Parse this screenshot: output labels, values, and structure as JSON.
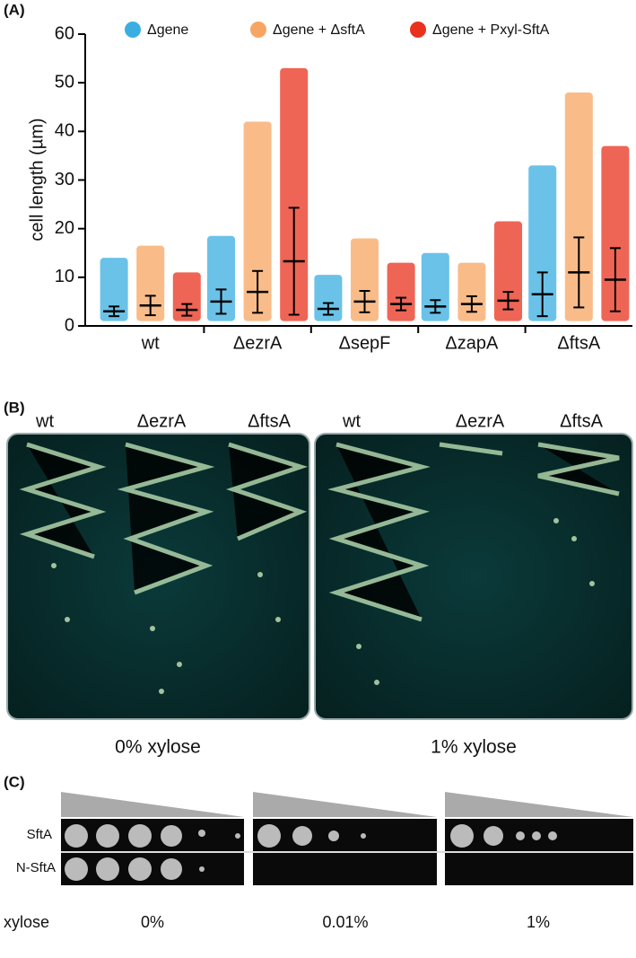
{
  "panel_labels": [
    "(A)",
    "(B)",
    "(C)"
  ],
  "chart_data": {
    "type": "strip",
    "ylabel": "cell length (µm)",
    "categories": [
      "wt",
      "ΔezrA",
      "ΔsepF",
      "ΔzapA",
      "ΔftsA"
    ],
    "ylim": [
      0,
      60
    ],
    "yticks": [
      0,
      10,
      20,
      30,
      40,
      50,
      60
    ],
    "series": [
      {
        "name": "Δgene",
        "color": "#3aaee0",
        "values": [
          3,
          5,
          3.5,
          4,
          6.5
        ],
        "sd": [
          1,
          2.5,
          1.2,
          1.3,
          4.5
        ],
        "min": [
          1,
          1,
          1,
          1,
          1
        ],
        "max": [
          14,
          18.5,
          10.5,
          15,
          33
        ]
      },
      {
        "name": "Δgene + ΔsftA",
        "color": "#f7a562",
        "values": [
          4.2,
          7,
          5,
          4.5,
          11
        ],
        "sd": [
          2,
          4.3,
          2.2,
          1.6,
          7.2
        ],
        "min": [
          1,
          1,
          1,
          1,
          1
        ],
        "max": [
          16.5,
          42,
          18,
          13,
          48
        ]
      },
      {
        "name": "Δgene + Pxyl-SftA",
        "color": "#e8321e",
        "values": [
          3.3,
          13.3,
          4.5,
          5.2,
          9.5
        ],
        "sd": [
          1.2,
          11,
          1.3,
          1.8,
          6.5
        ],
        "min": [
          1,
          1,
          1,
          1,
          1
        ],
        "max": [
          11,
          53,
          13,
          21.5,
          37
        ]
      }
    ]
  },
  "panel_b": {
    "plates": [
      {
        "labels": [
          "wt",
          "ΔezrA",
          "ΔftsA"
        ],
        "caption": "0% xylose"
      },
      {
        "labels": [
          "wt",
          "ΔezrA",
          "ΔftsA"
        ],
        "caption": "1% xylose"
      }
    ]
  },
  "panel_c": {
    "rows": [
      "SftA",
      "N-SftA"
    ],
    "condition_label": "xylose",
    "conditions": [
      "0%",
      "0.01%",
      "1%"
    ]
  }
}
